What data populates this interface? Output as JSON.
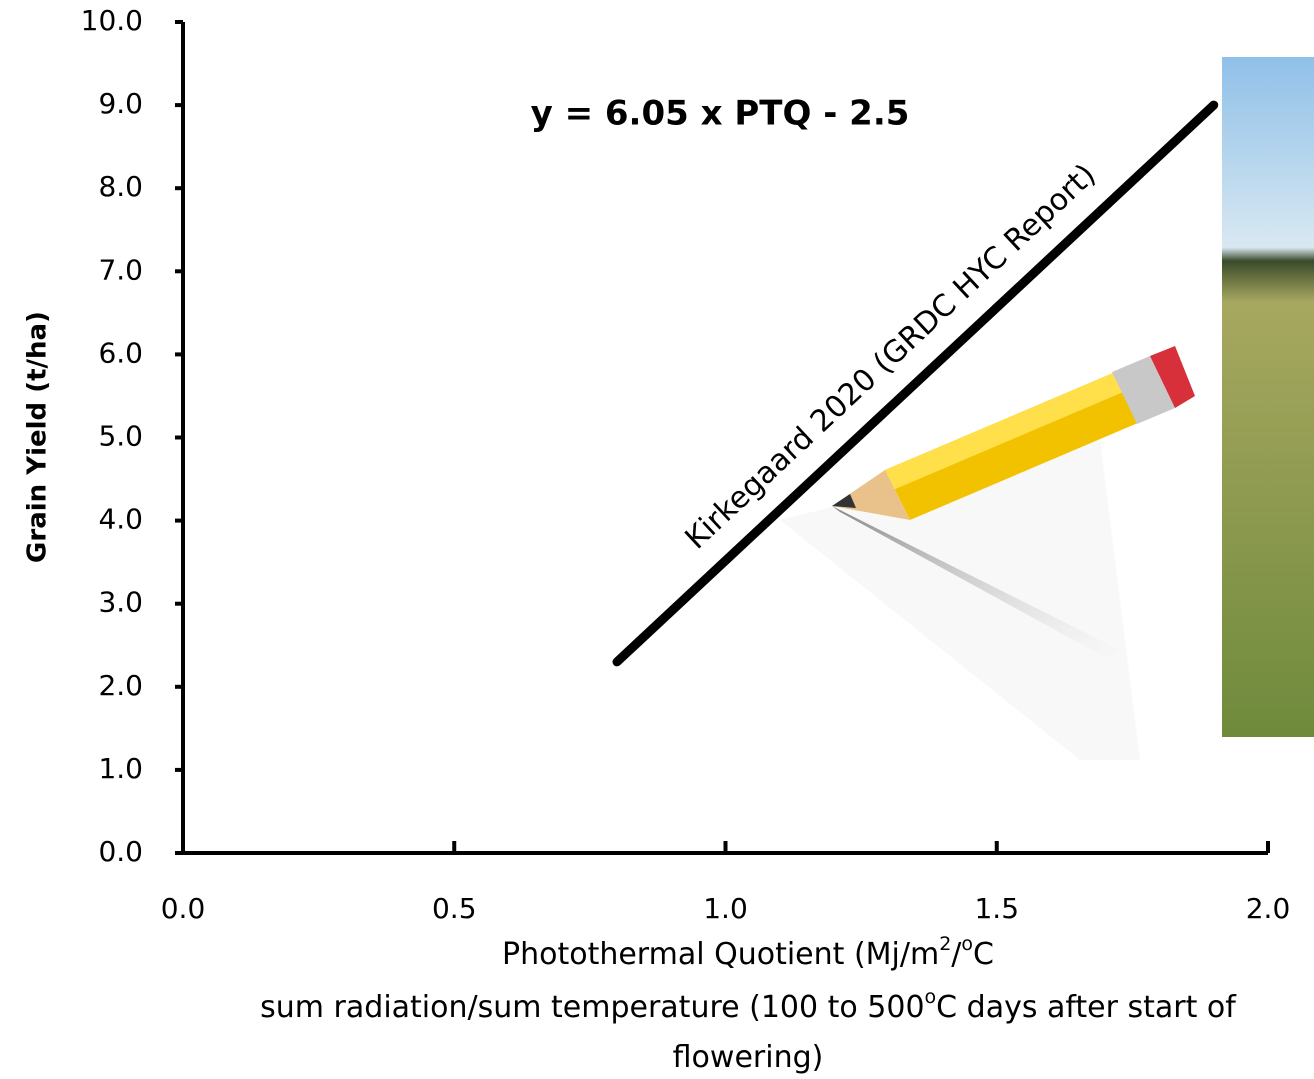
{
  "chart_data": {
    "type": "line",
    "annotation": "y = 6.05 x PTQ - 2.5",
    "line_label": "Kirkegaard 2020 (GRDC HYC Report)",
    "y_label": "Grain Yield (t/ha)",
    "x_label": [
      [
        {
          "text": "Photothermal Quotient (Mj/m"
        },
        {
          "text": "2",
          "sup": true
        },
        {
          "text": "/"
        },
        {
          "text": "o",
          "sup": true
        },
        {
          "text": "C"
        }
      ],
      [
        {
          "text": "sum radiation/sum temperature (100 to 500"
        },
        {
          "text": "o",
          "sup": true
        },
        {
          "text": "C days after start of"
        }
      ],
      [
        {
          "text": "flowering)"
        }
      ]
    ],
    "x": [
      0.8,
      1.9
    ],
    "values": [
      2.3,
      9.0
    ],
    "color": "#000000",
    "xlim": [
      0,
      2.0
    ],
    "ylim": [
      0,
      10.0
    ],
    "xticks": [
      {
        "value": 0,
        "label": "0.0"
      },
      0.5,
      {
        "value": 1,
        "label": "1.0"
      },
      1.5,
      {
        "value": 2,
        "label": "2.0"
      }
    ],
    "yticks": [
      {
        "value": 0,
        "label": "0.0"
      },
      {
        "value": 1,
        "label": "1.0"
      },
      {
        "value": 2,
        "label": "2.0"
      },
      {
        "value": 3,
        "label": "3.0"
      },
      {
        "value": 4,
        "label": "4.0"
      },
      {
        "value": 5,
        "label": "5.0"
      },
      {
        "value": 6,
        "label": "6.0"
      },
      {
        "value": 7,
        "label": "7.0"
      },
      {
        "value": 8,
        "label": "8.0"
      },
      {
        "value": 9,
        "label": "9.0"
      },
      {
        "value": 10,
        "label": "10.0"
      }
    ]
  }
}
